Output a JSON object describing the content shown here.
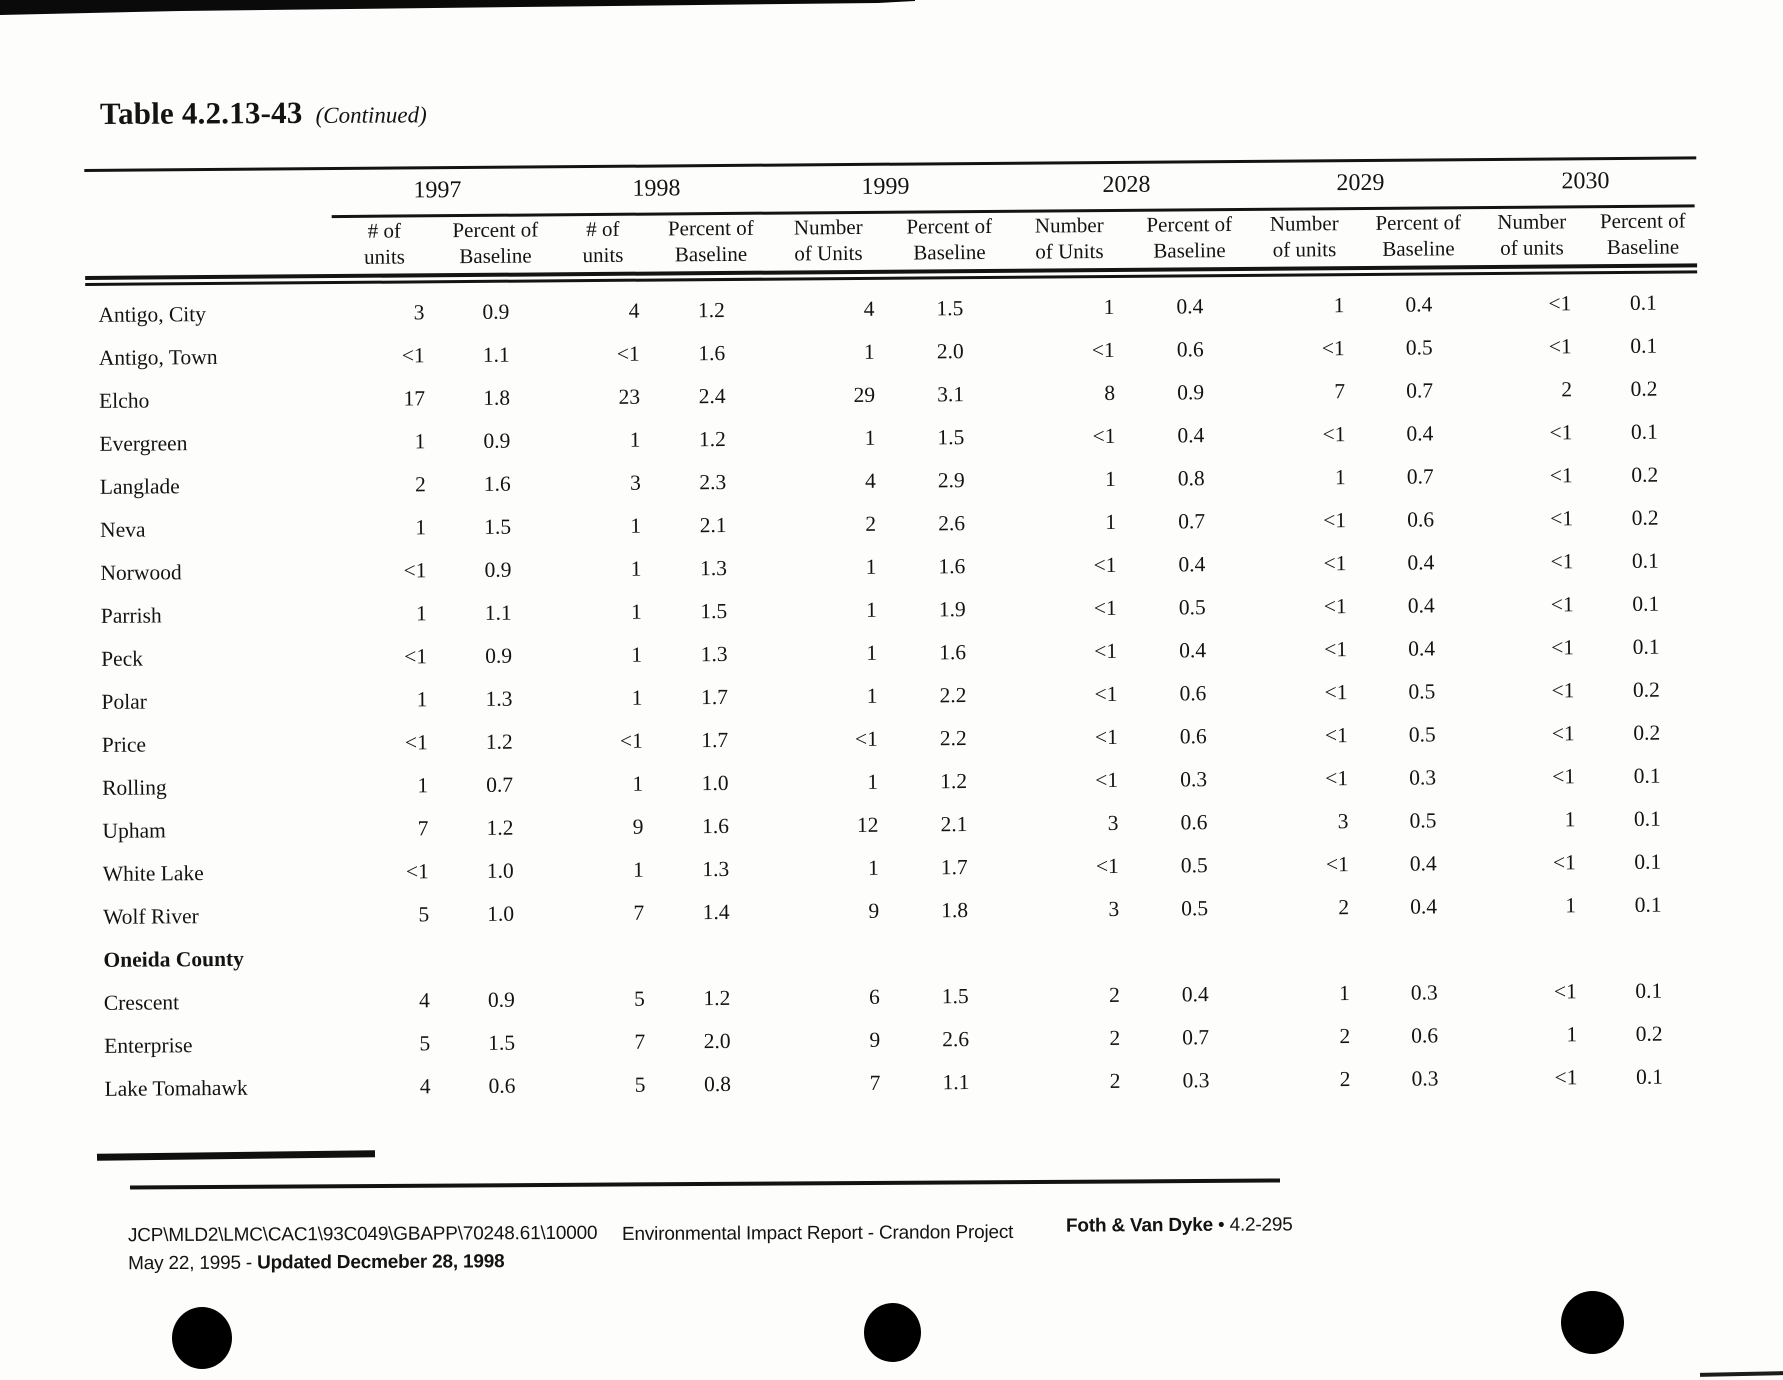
{
  "title": {
    "main": "Table 4.2.13-43",
    "continued": "(Continued)"
  },
  "table": {
    "year_groups": [
      {
        "year": "1997",
        "columns": [
          {
            "line1": "# of",
            "line2": "units"
          },
          {
            "line1": "Percent of",
            "line2": "Baseline"
          }
        ]
      },
      {
        "year": "1998",
        "columns": [
          {
            "line1": "# of",
            "line2": "units"
          },
          {
            "line1": "Percent of",
            "line2": "Baseline"
          }
        ]
      },
      {
        "year": "1999",
        "columns": [
          {
            "line1": "Number",
            "line2": "of Units"
          },
          {
            "line1": "Percent of",
            "line2": "Baseline"
          }
        ]
      },
      {
        "year": "2028",
        "columns": [
          {
            "line1": "Number",
            "line2": "of Units"
          },
          {
            "line1": "Percent of",
            "line2": "Baseline"
          }
        ]
      },
      {
        "year": "2029",
        "columns": [
          {
            "line1": "Number",
            "line2": "of units"
          },
          {
            "line1": "Percent of",
            "line2": "Baseline"
          }
        ]
      },
      {
        "year": "2030",
        "columns": [
          {
            "line1": "Number",
            "line2": "of units"
          },
          {
            "line1": "Percent of",
            "line2": "Baseline"
          }
        ]
      }
    ],
    "rows": [
      {
        "label": "Antigo, City",
        "type": "data",
        "values": [
          "3",
          "0.9",
          "4",
          "1.2",
          "4",
          "1.5",
          "1",
          "0.4",
          "1",
          "0.4",
          "<1",
          "0.1"
        ]
      },
      {
        "label": "Antigo, Town",
        "type": "data",
        "values": [
          "<1",
          "1.1",
          "<1",
          "1.6",
          "1",
          "2.0",
          "<1",
          "0.6",
          "<1",
          "0.5",
          "<1",
          "0.1"
        ]
      },
      {
        "label": "Elcho",
        "type": "data",
        "values": [
          "17",
          "1.8",
          "23",
          "2.4",
          "29",
          "3.1",
          "8",
          "0.9",
          "7",
          "0.7",
          "2",
          "0.2"
        ]
      },
      {
        "label": "Evergreen",
        "type": "data",
        "values": [
          "1",
          "0.9",
          "1",
          "1.2",
          "1",
          "1.5",
          "<1",
          "0.4",
          "<1",
          "0.4",
          "<1",
          "0.1"
        ]
      },
      {
        "label": "Langlade",
        "type": "data",
        "values": [
          "2",
          "1.6",
          "3",
          "2.3",
          "4",
          "2.9",
          "1",
          "0.8",
          "1",
          "0.7",
          "<1",
          "0.2"
        ]
      },
      {
        "label": "Neva",
        "type": "data",
        "values": [
          "1",
          "1.5",
          "1",
          "2.1",
          "2",
          "2.6",
          "1",
          "0.7",
          "<1",
          "0.6",
          "<1",
          "0.2"
        ]
      },
      {
        "label": "Norwood",
        "type": "data",
        "values": [
          "<1",
          "0.9",
          "1",
          "1.3",
          "1",
          "1.6",
          "<1",
          "0.4",
          "<1",
          "0.4",
          "<1",
          "0.1"
        ]
      },
      {
        "label": "Parrish",
        "type": "data",
        "values": [
          "1",
          "1.1",
          "1",
          "1.5",
          "1",
          "1.9",
          "<1",
          "0.5",
          "<1",
          "0.4",
          "<1",
          "0.1"
        ]
      },
      {
        "label": "Peck",
        "type": "data",
        "values": [
          "<1",
          "0.9",
          "1",
          "1.3",
          "1",
          "1.6",
          "<1",
          "0.4",
          "<1",
          "0.4",
          "<1",
          "0.1"
        ]
      },
      {
        "label": "Polar",
        "type": "data",
        "values": [
          "1",
          "1.3",
          "1",
          "1.7",
          "1",
          "2.2",
          "<1",
          "0.6",
          "<1",
          "0.5",
          "<1",
          "0.2"
        ]
      },
      {
        "label": "Price",
        "type": "data",
        "values": [
          "<1",
          "1.2",
          "<1",
          "1.7",
          "<1",
          "2.2",
          "<1",
          "0.6",
          "<1",
          "0.5",
          "<1",
          "0.2"
        ]
      },
      {
        "label": "Rolling",
        "type": "data",
        "values": [
          "1",
          "0.7",
          "1",
          "1.0",
          "1",
          "1.2",
          "<1",
          "0.3",
          "<1",
          "0.3",
          "<1",
          "0.1"
        ]
      },
      {
        "label": "Upham",
        "type": "data",
        "values": [
          "7",
          "1.2",
          "9",
          "1.6",
          "12",
          "2.1",
          "3",
          "0.6",
          "3",
          "0.5",
          "1",
          "0.1"
        ]
      },
      {
        "label": "White Lake",
        "type": "data",
        "values": [
          "<1",
          "1.0",
          "1",
          "1.3",
          "1",
          "1.7",
          "<1",
          "0.5",
          "<1",
          "0.4",
          "<1",
          "0.1"
        ]
      },
      {
        "label": "Wolf River",
        "type": "data",
        "values": [
          "5",
          "1.0",
          "7",
          "1.4",
          "9",
          "1.8",
          "3",
          "0.5",
          "2",
          "0.4",
          "1",
          "0.1"
        ]
      },
      {
        "label": "Oneida County",
        "type": "section",
        "values": []
      },
      {
        "label": "Crescent",
        "type": "data",
        "values": [
          "4",
          "0.9",
          "5",
          "1.2",
          "6",
          "1.5",
          "2",
          "0.4",
          "1",
          "0.3",
          "<1",
          "0.1"
        ]
      },
      {
        "label": "Enterprise",
        "type": "data",
        "values": [
          "5",
          "1.5",
          "7",
          "2.0",
          "9",
          "2.6",
          "2",
          "0.7",
          "2",
          "0.6",
          "1",
          "0.2"
        ]
      },
      {
        "label": "Lake Tomahawk",
        "type": "data",
        "values": [
          "4",
          "0.6",
          "5",
          "0.8",
          "7",
          "1.1",
          "2",
          "0.3",
          "2",
          "0.3",
          "<1",
          "0.1"
        ]
      }
    ]
  },
  "footer": {
    "file_code": "JCP\\MLD2\\LMC\\CAC1\\93C049\\GBAPP\\70248.61\\10000",
    "date_prefix": "May 22, 1995 - ",
    "date_updated": "Updated Decmeber 28, 1998",
    "center": "Environmental Impact Report - Crandon Project",
    "right_name": "Foth & Van Dyke",
    "right_separator": "•",
    "right_page": "4.2-295"
  }
}
